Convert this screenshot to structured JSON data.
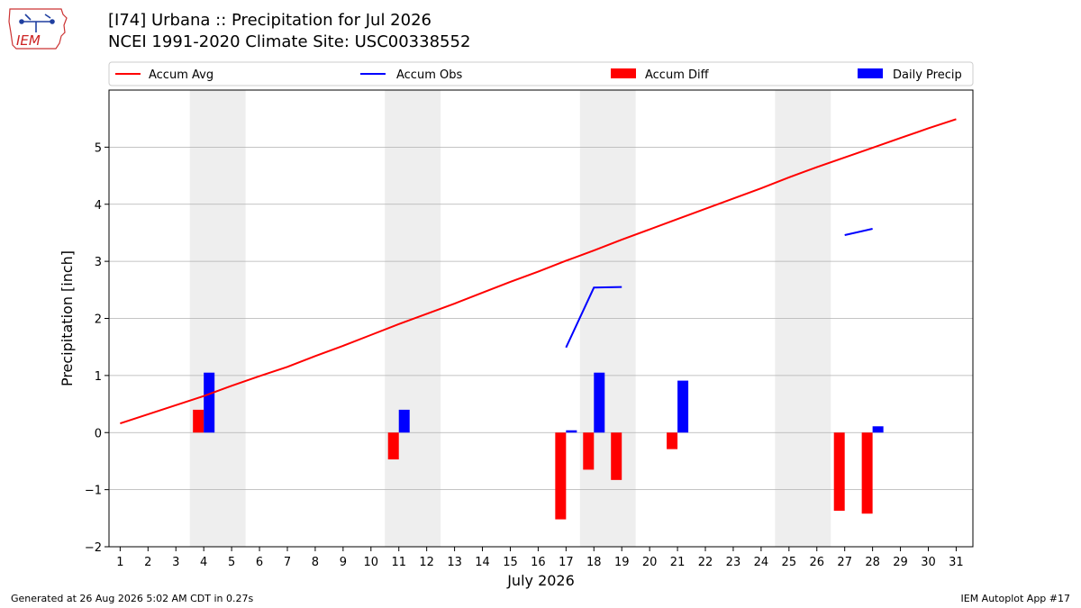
{
  "header": {
    "title_line1": "[I74] Urbana :: Precipitation for Jul 2026",
    "title_line2": "NCEI 1991-2020 Climate Site: USC00338552",
    "logo_text": "IEM"
  },
  "footer": {
    "left": "Generated at 26 Aug 2026 5:02 AM CDT in 0.27s",
    "right": "IEM Autoplot App #17"
  },
  "colors": {
    "avg": "#ff0000",
    "obs": "#0000ff",
    "diff": "#ff0000",
    "daily": "#0000ff",
    "weekend": "#eeeeee",
    "grid": "#b0b0b0"
  },
  "chart_data": {
    "type": "bar",
    "xlabel": "July 2026",
    "ylabel": "Precipitation [inch]",
    "xlim": [
      0.6,
      31.6
    ],
    "ylim": [
      -2.0,
      6.0
    ],
    "yticks": [
      -2,
      -1,
      0,
      1,
      2,
      3,
      4,
      5
    ],
    "ytick_labels": [
      "−2",
      "−1",
      "0",
      "1",
      "2",
      "3",
      "4",
      "5"
    ],
    "xticks": [
      1,
      2,
      3,
      4,
      5,
      6,
      7,
      8,
      9,
      10,
      11,
      12,
      13,
      14,
      15,
      16,
      17,
      18,
      19,
      20,
      21,
      22,
      23,
      24,
      25,
      26,
      27,
      28,
      29,
      30,
      31
    ],
    "grid": true,
    "legend_position": "top",
    "weekend_spans": [
      [
        3.5,
        5.5
      ],
      [
        10.5,
        12.5
      ],
      [
        17.5,
        19.5
      ],
      [
        24.5,
        26.5
      ]
    ],
    "series": [
      {
        "name": "Accum Avg",
        "kind": "line",
        "x": [
          1,
          2,
          3,
          4,
          5,
          6,
          7,
          8,
          9,
          10,
          11,
          12,
          13,
          14,
          15,
          16,
          17,
          18,
          19,
          20,
          21,
          22,
          23,
          24,
          25,
          26,
          27,
          28,
          29,
          30,
          31
        ],
        "y": [
          0.16,
          0.32,
          0.48,
          0.64,
          0.82,
          0.99,
          1.15,
          1.34,
          1.52,
          1.71,
          1.9,
          2.08,
          2.26,
          2.45,
          2.64,
          2.82,
          3.01,
          3.19,
          3.38,
          3.56,
          3.74,
          3.92,
          4.1,
          4.28,
          4.47,
          4.65,
          4.82,
          4.99,
          5.16,
          5.33,
          5.49
        ]
      },
      {
        "name": "Accum Obs",
        "kind": "line",
        "segments": [
          {
            "x": [
              17,
              18,
              19
            ],
            "y": [
              1.49,
              2.54,
              2.55
            ]
          },
          {
            "x": [
              27,
              28
            ],
            "y": [
              3.46,
              3.57
            ]
          }
        ]
      },
      {
        "name": "Accum Diff",
        "kind": "bar",
        "x": [
          4,
          11,
          17,
          18,
          19,
          21,
          27,
          28
        ],
        "y": [
          0.4,
          -0.47,
          -1.52,
          -0.65,
          -0.83,
          -0.29,
          -1.37,
          -1.42
        ]
      },
      {
        "name": "Daily Precip",
        "kind": "bar",
        "x": [
          4,
          11,
          17,
          18,
          21,
          28
        ],
        "y": [
          1.05,
          0.4,
          0.04,
          1.05,
          0.91,
          0.11
        ]
      }
    ]
  }
}
